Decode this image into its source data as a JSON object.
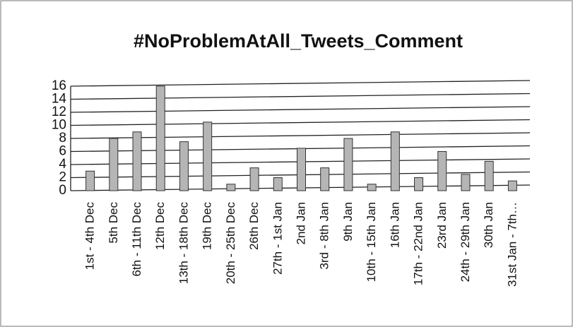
{
  "chart_data": {
    "type": "bar",
    "title": "#NoProblemAtAll_Tweets_Comment",
    "categories": [
      "1st - 4th Dec",
      "5th Dec",
      "6th - 11th Dec",
      "12th Dec",
      "13th - 18th Dec",
      "19th Dec",
      "20th - 25th Dec",
      "26th Dec",
      "27th - 1st Jan",
      "2nd Jan",
      "3rd - 8th Jan",
      "9th Jan",
      "10th - 15th Jan",
      "16th Jan",
      "17th - 22nd Jan",
      "23rd Jan",
      "24th - 29th Jan",
      "30th Jan",
      "31st Jan - 7th…"
    ],
    "values": [
      3,
      8,
      9,
      16,
      7.5,
      10.5,
      1,
      3.5,
      2,
      6.5,
      3.5,
      8,
      1,
      9,
      2,
      6,
      2.5,
      4.5,
      1.5
    ],
    "color": "#b5b5b5",
    "ylim": [
      0,
      16
    ],
    "yticks": [
      0,
      2,
      4,
      6,
      8,
      10,
      12,
      14,
      16
    ],
    "grid": true
  }
}
